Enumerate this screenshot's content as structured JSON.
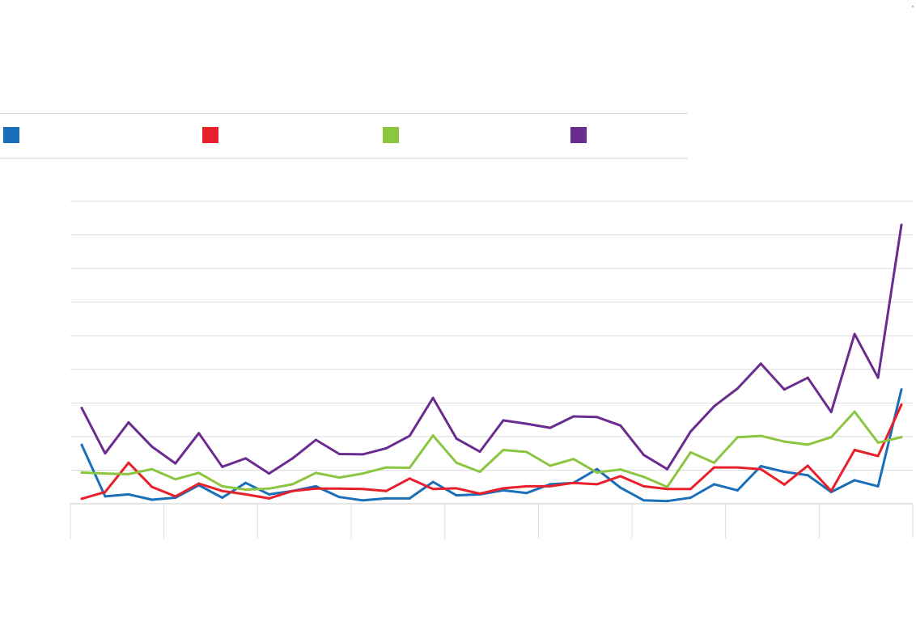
{
  "corner_mark": "·",
  "chart_data": {
    "type": "line",
    "title": "",
    "xlabel": "",
    "ylabel": "",
    "ylim": [
      0,
      9
    ],
    "grid": true,
    "legend": "top-left",
    "x": [
      1,
      2,
      3,
      4,
      5,
      6,
      7,
      8,
      9,
      10,
      11,
      12,
      13,
      14,
      15,
      16,
      17,
      18,
      19,
      20,
      21,
      22,
      23,
      24,
      25,
      26,
      27,
      28,
      29,
      30,
      31,
      32,
      33,
      34,
      35,
      36
    ],
    "series": [
      {
        "name": "",
        "color": "#1a6fb9",
        "values": [
          1.75,
          0.22,
          0.28,
          0.12,
          0.18,
          0.55,
          0.18,
          0.62,
          0.28,
          0.38,
          0.52,
          0.2,
          0.1,
          0.16,
          0.16,
          0.65,
          0.25,
          0.28,
          0.4,
          0.32,
          0.58,
          0.62,
          1.03,
          0.48,
          0.1,
          0.08,
          0.18,
          0.58,
          0.4,
          1.12,
          0.95,
          0.85,
          0.35,
          0.7,
          0.52,
          3.4
        ]
      },
      {
        "name": "",
        "color": "#e8202b",
        "values": [
          0.15,
          0.35,
          1.22,
          0.5,
          0.22,
          0.6,
          0.38,
          0.28,
          0.16,
          0.38,
          0.45,
          0.45,
          0.44,
          0.38,
          0.75,
          0.44,
          0.46,
          0.3,
          0.46,
          0.52,
          0.52,
          0.62,
          0.58,
          0.82,
          0.52,
          0.44,
          0.44,
          1.08,
          1.08,
          1.03,
          0.57,
          1.13,
          0.38,
          1.6,
          1.42,
          2.95
        ]
      },
      {
        "name": "",
        "color": "#8cc540",
        "values": [
          0.93,
          0.9,
          0.88,
          1.03,
          0.73,
          0.92,
          0.52,
          0.42,
          0.45,
          0.58,
          0.92,
          0.78,
          0.9,
          1.08,
          1.07,
          2.03,
          1.22,
          0.95,
          1.6,
          1.54,
          1.13,
          1.33,
          0.93,
          1.02,
          0.8,
          0.5,
          1.53,
          1.22,
          1.98,
          2.02,
          1.85,
          1.76,
          1.98,
          2.74,
          1.82,
          1.98
        ]
      },
      {
        "name": "",
        "color": "#6a2c8e",
        "values": [
          2.85,
          1.5,
          2.42,
          1.7,
          1.2,
          2.1,
          1.1,
          1.35,
          0.9,
          1.35,
          1.9,
          1.48,
          1.47,
          1.65,
          2.02,
          3.15,
          1.94,
          1.55,
          2.48,
          2.38,
          2.26,
          2.6,
          2.58,
          2.33,
          1.45,
          1.03,
          2.15,
          2.9,
          3.43,
          4.17,
          3.4,
          3.75,
          2.73,
          5.05,
          3.75,
          8.3
        ]
      }
    ]
  }
}
